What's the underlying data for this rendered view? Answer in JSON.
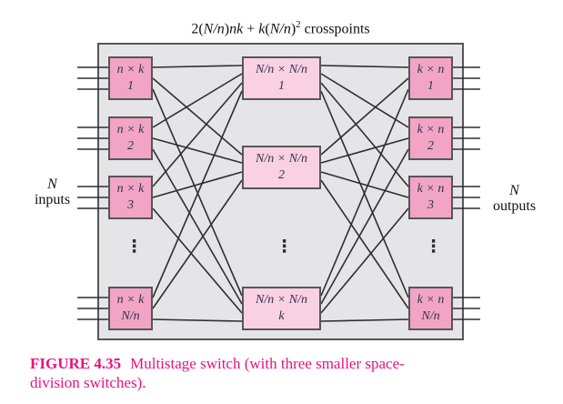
{
  "figure": {
    "formula_segments": [
      {
        "t": "2("
      },
      {
        "t": "N/n",
        "i": true
      },
      {
        "t": ")"
      },
      {
        "t": "nk",
        "i": true
      },
      {
        "t": " + "
      },
      {
        "t": "k",
        "i": true
      },
      {
        "t": "("
      },
      {
        "t": "N/n",
        "i": true
      },
      {
        "t": ")"
      },
      {
        "t": "2",
        "sup": true
      },
      {
        "t": " crosspoints"
      }
    ],
    "caption_label": "FIGURE 4.35",
    "caption_text": "Multistage switch (with three smaller space-division switches)."
  },
  "diagram": {
    "input_label": {
      "line1": "N",
      "line2": "inputs"
    },
    "output_label": {
      "line1": "N",
      "line2": "outputs"
    },
    "ellipsis": "⋮",
    "stages": {
      "input": {
        "boxes": [
          {
            "size": "n × k",
            "index": "1"
          },
          {
            "size": "n × k",
            "index": "2"
          },
          {
            "size": "n × k",
            "index": "3"
          },
          {
            "size": "n × k",
            "index": "N/n"
          }
        ]
      },
      "middle": {
        "boxes": [
          {
            "size": "N/n × N/n",
            "index": "1"
          },
          {
            "size": "N/n × N/n",
            "index": "2"
          },
          {
            "size": "N/n × N/n",
            "index": "k"
          }
        ]
      },
      "output": {
        "boxes": [
          {
            "size": "k × n",
            "index": "1"
          },
          {
            "size": "k × n",
            "index": "2"
          },
          {
            "size": "k × n",
            "index": "3"
          },
          {
            "size": "k × n",
            "index": "N/n"
          }
        ]
      }
    }
  },
  "colors": {
    "first_last_stage_box": "#f2a4c4",
    "middle_stage_box": "#f9d1e1",
    "enclosure_background": "#e5e5e7",
    "box_border": "#55565a",
    "wire": "#2e2e2e",
    "caption_magenta": "#e8127f"
  }
}
